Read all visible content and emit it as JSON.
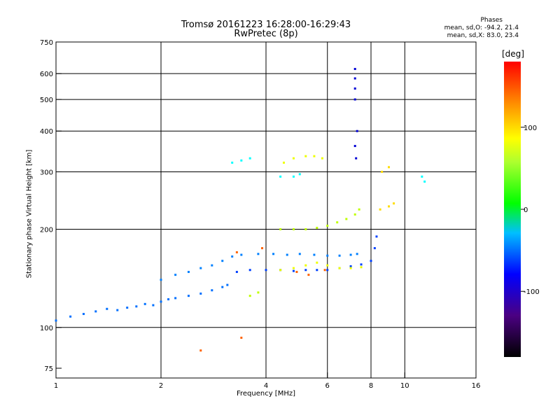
{
  "header": {
    "title_line1": "Tromsø 20161223 16:28:00-16:29:43",
    "title_line2": "RwPretec (8p)"
  },
  "stats": {
    "heading": "Phases",
    "line_o": "mean, sd,O: -94.2, 21.4",
    "line_x": "mean, sd,X:  83.0, 23.4"
  },
  "colorbar": {
    "label": "[deg]",
    "ticks": [
      "100",
      "0",
      "-100"
    ],
    "tick_values": [
      100,
      0,
      -100
    ],
    "range": [
      -180,
      180
    ]
  },
  "chart_data": {
    "type": "scatter",
    "xlabel": "Frequency [MHz]",
    "ylabel": "Stationary phase Virtual Height [km]",
    "xscale": "log",
    "yscale": "log",
    "xlim": [
      1,
      16
    ],
    "ylim": [
      70,
      750
    ],
    "x_ticks": [
      1,
      2,
      4,
      6,
      8,
      10,
      16
    ],
    "x_tick_labels": [
      "1",
      "2",
      "4",
      "6",
      "8",
      "10",
      "16"
    ],
    "y_ticks": [
      75,
      100,
      200,
      300,
      400,
      500,
      600,
      750
    ],
    "y_tick_labels": [
      "75",
      "100",
      "200",
      "300",
      "400",
      "500",
      "600",
      "750"
    ],
    "grid_x": [
      2,
      4,
      6,
      8,
      10
    ],
    "grid_y": [
      100,
      200,
      300,
      400,
      500,
      600
    ],
    "traces": [
      {
        "name": "",
        "phase": -105,
        "points": [
          [
            1.0,
            105
          ],
          [
            1.1,
            108
          ],
          [
            1.2,
            110
          ],
          [
            1.3,
            112
          ],
          [
            1.4,
            114
          ],
          [
            1.5,
            113
          ],
          [
            1.6,
            115
          ],
          [
            1.7,
            116
          ],
          [
            1.8,
            118
          ],
          [
            1.9,
            117
          ],
          [
            2.0,
            120
          ],
          [
            2.1,
            122
          ],
          [
            2.2,
            123
          ],
          [
            2.4,
            125
          ],
          [
            2.6,
            127
          ],
          [
            2.8,
            130
          ],
          [
            3.0,
            133
          ],
          [
            3.1,
            135
          ]
        ]
      },
      {
        "name": "",
        "phase": -100,
        "points": [
          [
            2.0,
            140
          ],
          [
            2.2,
            145
          ],
          [
            2.4,
            148
          ],
          [
            2.6,
            152
          ],
          [
            2.8,
            155
          ],
          [
            3.0,
            160
          ],
          [
            3.2,
            165
          ],
          [
            3.4,
            167
          ],
          [
            3.8,
            168
          ],
          [
            4.2,
            168
          ],
          [
            4.6,
            167
          ],
          [
            5.0,
            168
          ],
          [
            5.5,
            167
          ],
          [
            6.0,
            166
          ],
          [
            6.5,
            166
          ],
          [
            7.0,
            167
          ],
          [
            7.3,
            168
          ]
        ]
      },
      {
        "name": "",
        "phase": -120,
        "points": [
          [
            3.3,
            148
          ],
          [
            3.6,
            150
          ],
          [
            4.0,
            150
          ],
          [
            4.4,
            150
          ],
          [
            4.8,
            149
          ],
          [
            5.2,
            150
          ],
          [
            5.6,
            150
          ],
          [
            6.0,
            150
          ],
          [
            6.5,
            152
          ],
          [
            7.0,
            154
          ],
          [
            7.5,
            156
          ],
          [
            8.0,
            160
          ],
          [
            8.2,
            175
          ],
          [
            8.3,
            190
          ]
        ]
      },
      {
        "name": "",
        "phase": 80,
        "points": [
          [
            3.6,
            125
          ],
          [
            3.8,
            128
          ],
          [
            4.4,
            200
          ],
          [
            4.8,
            200
          ],
          [
            5.2,
            200
          ],
          [
            5.6,
            202
          ],
          [
            6.0,
            205
          ],
          [
            6.4,
            210
          ],
          [
            6.8,
            215
          ],
          [
            7.2,
            222
          ],
          [
            7.4,
            230
          ]
        ]
      },
      {
        "name": "",
        "phase": 95,
        "points": [
          [
            4.4,
            150
          ],
          [
            4.8,
            152
          ],
          [
            5.2,
            155
          ],
          [
            5.6,
            158
          ],
          [
            6.0,
            155
          ],
          [
            6.5,
            152
          ],
          [
            7.0,
            152
          ],
          [
            7.5,
            153
          ],
          [
            4.5,
            320
          ],
          [
            4.8,
            330
          ],
          [
            5.2,
            335
          ],
          [
            5.5,
            335
          ],
          [
            5.8,
            330
          ]
        ]
      },
      {
        "name": "",
        "phase": -140,
        "points": [
          [
            7.2,
            620
          ],
          [
            7.2,
            580
          ],
          [
            7.2,
            540
          ],
          [
            7.2,
            500
          ],
          [
            7.25,
            330
          ],
          [
            7.2,
            360
          ],
          [
            7.3,
            400
          ]
        ]
      },
      {
        "name": "",
        "phase": -60,
        "points": [
          [
            3.2,
            320
          ],
          [
            3.4,
            325
          ],
          [
            3.6,
            330
          ],
          [
            4.4,
            290
          ],
          [
            4.8,
            290
          ],
          [
            5.0,
            295
          ],
          [
            11.2,
            290
          ],
          [
            11.4,
            280
          ]
        ]
      },
      {
        "name": "",
        "phase": 150,
        "points": [
          [
            3.3,
            170
          ],
          [
            3.9,
            175
          ],
          [
            4.9,
            148
          ],
          [
            5.3,
            145
          ],
          [
            5.9,
            150
          ],
          [
            2.6,
            85
          ],
          [
            3.4,
            93
          ]
        ]
      },
      {
        "name": "",
        "phase": 110,
        "points": [
          [
            8.5,
            230
          ],
          [
            9.0,
            235
          ],
          [
            9.3,
            240
          ],
          [
            8.6,
            300
          ],
          [
            9.0,
            310
          ]
        ]
      }
    ]
  }
}
